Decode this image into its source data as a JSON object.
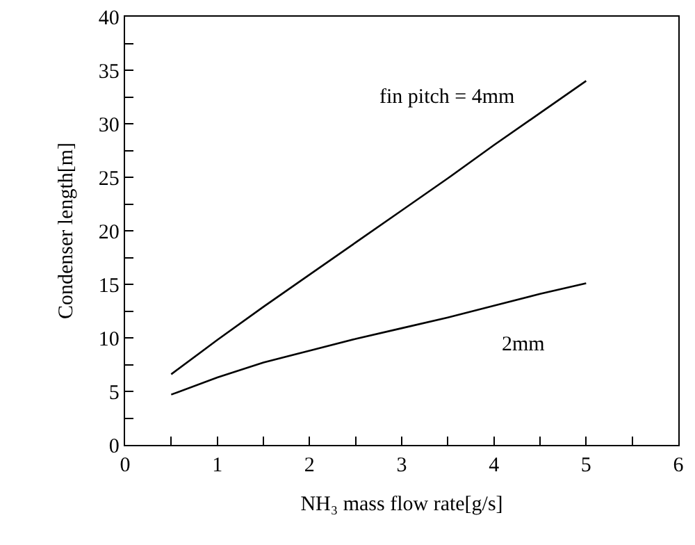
{
  "chart_data": {
    "type": "line",
    "xlabel": "NH₃ mass flow rate[g/s]",
    "ylabel": "Condenser length[m]",
    "x": [
      0.5,
      1,
      1.5,
      2,
      2.5,
      3,
      3.5,
      4,
      4.5,
      5
    ],
    "series": [
      {
        "name": "fin pitch = 4mm",
        "color": "#000000",
        "values": [
          6.6,
          9.8,
          12.9,
          15.9,
          18.9,
          21.9,
          24.9,
          28.0,
          31.0,
          34.0
        ]
      },
      {
        "name": "2mm",
        "color": "#000000",
        "values": [
          4.7,
          6.3,
          7.7,
          8.8,
          9.9,
          10.9,
          11.9,
          13.0,
          14.1,
          15.1
        ]
      }
    ],
    "xlim": [
      0,
      6
    ],
    "ylim": [
      0,
      40
    ],
    "xticks": [
      0,
      {
        "value": 0.5,
        "label": null
      },
      1,
      {
        "value": 1.5,
        "label": null
      },
      2,
      {
        "value": 2.5,
        "label": null
      },
      3,
      {
        "value": 3.5,
        "label": null
      },
      4,
      {
        "value": 4.5,
        "label": null
      },
      5,
      {
        "value": 5.5,
        "label": null
      },
      6
    ],
    "yticks": [
      0,
      {
        "value": 2.5,
        "label": null
      },
      5,
      {
        "value": 7.5,
        "label": null
      },
      10,
      {
        "value": 12.5,
        "label": null
      },
      15,
      {
        "value": 17.5,
        "label": null
      },
      20,
      {
        "value": 22.5,
        "label": null
      },
      25,
      {
        "value": 27.5,
        "label": null
      },
      30,
      {
        "value": 32.5,
        "label": null
      },
      35,
      {
        "value": 37.5,
        "label": null
      },
      40
    ],
    "grid": false,
    "legend": false,
    "marker": "none",
    "line_style": "solid"
  }
}
